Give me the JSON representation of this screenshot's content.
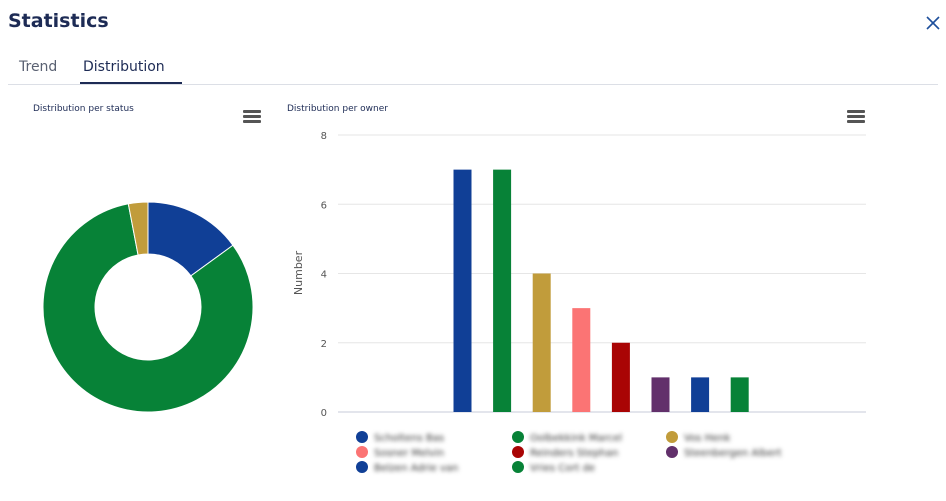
{
  "header": {
    "title": "Statistics",
    "close_icon": "close-icon"
  },
  "tabs": [
    {
      "label": "Trend"
    },
    {
      "label": "Distribution"
    }
  ],
  "active_tab": "Distribution",
  "colors": {
    "accent": "#1d2b55"
  },
  "chart_data": [
    {
      "type": "pie",
      "donut": true,
      "title": "Distribution per status",
      "categories": [
        "",
        "",
        ""
      ],
      "values": [
        15,
        82,
        3
      ],
      "colors": [
        "#103f96",
        "#078237",
        "#c19c3b"
      ]
    },
    {
      "type": "bar",
      "title": "Distribution per owner",
      "ylabel": "Number",
      "xlabel": "",
      "ylim": [
        0,
        8
      ],
      "yticks": [
        "0",
        "2",
        "4",
        "6",
        "8"
      ],
      "categories": [
        "Scholtens Bas",
        "Oolbekkink Marcel",
        "Vos Henk",
        "Sosner Melvin",
        "Reinders Stephan",
        "Steenbergen Albert",
        "Belzen Adrie van",
        "Vries Cort de"
      ],
      "values": [
        7,
        7,
        4,
        3,
        2,
        1,
        1,
        1
      ],
      "colors": [
        "#103f96",
        "#078237",
        "#c19c3b",
        "#fb7474",
        "#a90404",
        "#62306b",
        "#103f96",
        "#078237"
      ],
      "grid": true,
      "legend": "bottom"
    }
  ]
}
